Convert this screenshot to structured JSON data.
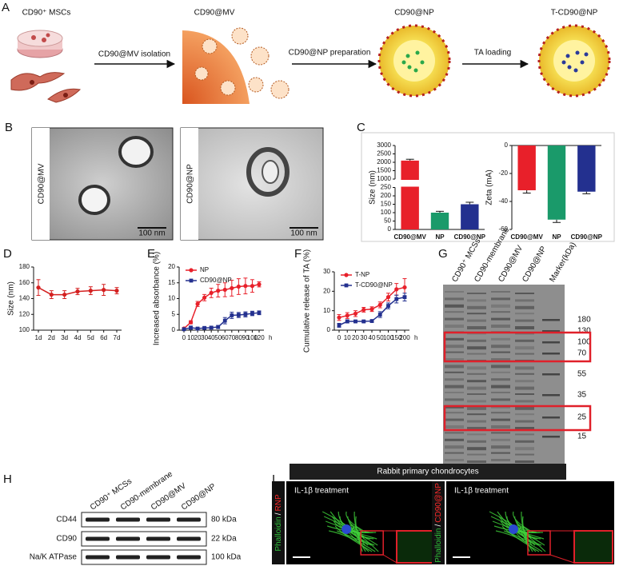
{
  "panel_labels": [
    "A",
    "B",
    "C",
    "D",
    "E",
    "F",
    "G",
    "H",
    "I"
  ],
  "schematic": {
    "stages": [
      "CD90⁺ MSCs",
      "CD90@MV",
      "CD90@NP",
      "T-CD90@NP"
    ],
    "steps": [
      "CD90@MV isolation",
      "CD90@NP preparation",
      "TA loading"
    ]
  },
  "tem": [
    {
      "label": "CD90@MV",
      "scale_bar": "100 nm"
    },
    {
      "label": "CD90@NP",
      "scale_bar": "100 nm"
    }
  ],
  "chart_data": [
    {
      "type": "bar",
      "ylabel": "Size (nm)",
      "categories": [
        "CD90@MV",
        "NP",
        "CD90@NP"
      ],
      "values": [
        2100,
        100,
        150
      ],
      "errors": [
        80,
        8,
        12
      ],
      "colors": [
        "#e8202a",
        "#1a9a6a",
        "#23308f"
      ],
      "ylim": [
        0,
        3000
      ],
      "ybreak": [
        250,
        1000
      ],
      "yticks": [
        0,
        50,
        100,
        150,
        200,
        250,
        1000,
        1500,
        2000,
        2500,
        3000
      ]
    },
    {
      "type": "bar",
      "ylabel": "Zeta (mA)",
      "categories": [
        "CD90@MV",
        "NP",
        "CD90@NP"
      ],
      "values": [
        -32,
        -53,
        -33
      ],
      "errors": [
        2,
        2,
        1.5
      ],
      "colors": [
        "#e8202a",
        "#1a9a6a",
        "#23308f"
      ],
      "ylim": [
        -60,
        0
      ],
      "yticks": [
        -60,
        -40,
        -20,
        0
      ]
    },
    {
      "type": "line",
      "ylabel": "Size (nm)",
      "categories": [
        "1d",
        "2d",
        "3d",
        "4d",
        "5d",
        "6d",
        "7d"
      ],
      "series": [
        {
          "color": "#d42020",
          "values": [
            154,
            145,
            145,
            149,
            150,
            151,
            150
          ],
          "errors": [
            10,
            5,
            5,
            4,
            5,
            7,
            4
          ]
        }
      ],
      "ylim": [
        100,
        180
      ],
      "yticks": [
        100,
        120,
        140,
        160,
        180
      ]
    },
    {
      "type": "line",
      "ylabel": "Increased absorbance (%)",
      "xunit": "h",
      "categories": [
        "0",
        "10",
        "20",
        "30",
        "40",
        "50",
        "60",
        "70",
        "80",
        "90",
        "100",
        "120"
      ],
      "series": [
        {
          "name": "NP",
          "color": "#e8202a",
          "values": [
            0.5,
            2.5,
            8.3,
            10.3,
            11.8,
            12.5,
            12.8,
            13.3,
            13.8,
            14,
            14,
            14.5
          ],
          "errors": [
            0.3,
            0.5,
            0.8,
            1,
            1.5,
            2,
            2.2,
            2.5,
            2.5,
            2.5,
            2,
            0.8
          ]
        },
        {
          "name": "CD90@NP",
          "color": "#23308f",
          "values": [
            0.3,
            0.8,
            0.5,
            0.7,
            0.8,
            1,
            3,
            4.7,
            4.8,
            5,
            5.3,
            5.5
          ],
          "errors": [
            0.2,
            0.5,
            0.3,
            0.3,
            0.4,
            0.5,
            1,
            1,
            0.8,
            0.8,
            0.7,
            0.6
          ]
        }
      ],
      "ylim": [
        0,
        20
      ],
      "yticks": [
        0,
        5,
        10,
        15,
        20
      ]
    },
    {
      "type": "line",
      "ylabel": "Cumulative release of TA (%)",
      "xunit": "h",
      "categories": [
        "0",
        "10",
        "20",
        "30",
        "40",
        "50",
        "100",
        "150",
        "200"
      ],
      "series": [
        {
          "name": "T-NP",
          "color": "#e8202a",
          "values": [
            6.5,
            7.5,
            8.5,
            10.5,
            10.8,
            13,
            17,
            21,
            22
          ],
          "errors": [
            1.5,
            1.5,
            1.5,
            1.2,
            1.2,
            1.5,
            2,
            3,
            4.5
          ]
        },
        {
          "name": "T-CD90@NP",
          "color": "#23308f",
          "values": [
            2.5,
            4.5,
            4.5,
            4.5,
            4.7,
            8,
            12.5,
            16,
            17
          ],
          "errors": [
            1,
            0.8,
            0.5,
            0.5,
            0.5,
            1.5,
            1.5,
            2,
            2
          ]
        }
      ],
      "ylim": [
        0,
        30
      ],
      "yticks": [
        0,
        10,
        20,
        30
      ]
    }
  ],
  "gel": {
    "lanes": [
      "CD90⁺ MCSs",
      "CD90-membrane",
      "CD90@MV",
      "CD90@NP",
      "Marker(kDa)"
    ],
    "markers": [
      180,
      130,
      100,
      70,
      55,
      35,
      25,
      15
    ]
  },
  "western": {
    "lanes": [
      "CD90⁺ MCSs",
      "CD90-membrane",
      "CD90@MV",
      "CD90@NP"
    ],
    "rows": [
      {
        "protein": "CD44",
        "size": "80 kDa"
      },
      {
        "protein": "CD90",
        "size": "22 kDa"
      },
      {
        "protein": "Na/K ATPase",
        "size": "100 kDa"
      }
    ]
  },
  "confocal": {
    "header": "Rabbit primary chondrocytes",
    "panels": [
      {
        "treatment": "IL-1β treatment",
        "stain": [
          "Phalloidin",
          "/",
          "RNP"
        ]
      },
      {
        "treatment": "IL-1β treatment",
        "stain": [
          "Phalloidin",
          "/",
          "CD90@NP"
        ]
      }
    ]
  }
}
